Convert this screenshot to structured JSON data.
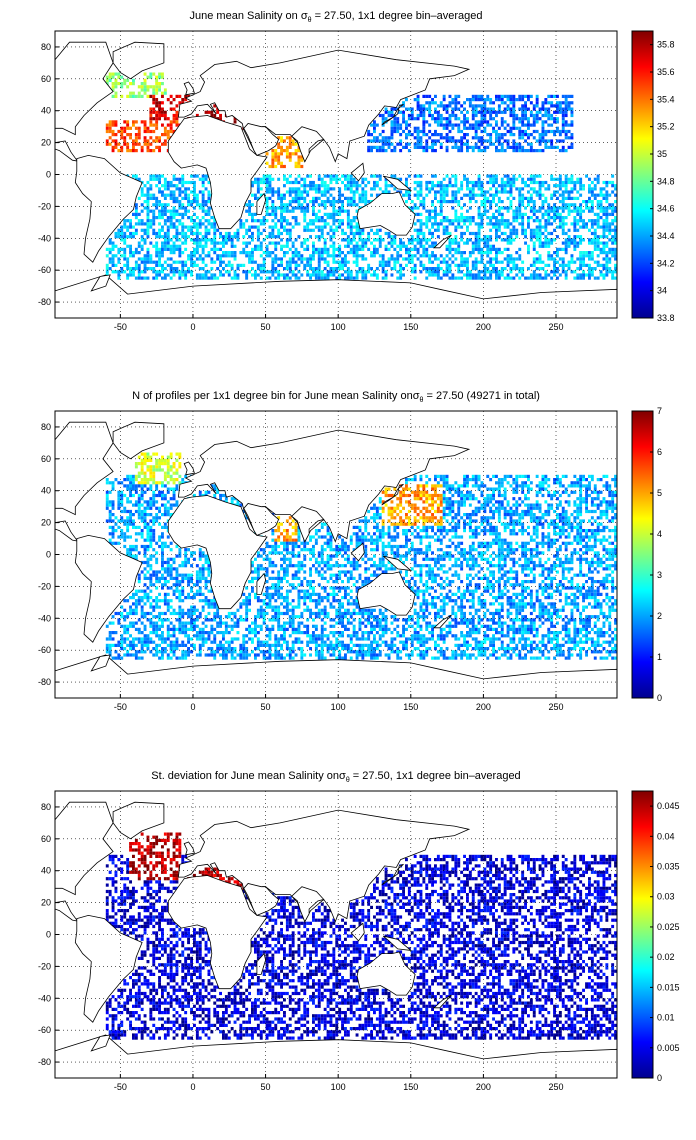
{
  "chart_data": [
    {
      "type": "heatmap",
      "title": {
        "before": "June mean Salinity on ",
        "symbol": "σ",
        "subscript": "θ",
        "after": " = 27.50, 1x1 degree bin–averaged"
      },
      "xlim": [
        -95,
        292
      ],
      "ylim": [
        -90,
        90
      ],
      "xticks": [
        -50,
        0,
        50,
        100,
        150,
        200,
        250
      ],
      "xtick_labels": [
        "-50",
        "0",
        "50",
        "100",
        "150",
        "200",
        "250"
      ],
      "yticks": [
        80,
        60,
        40,
        20,
        0,
        -20,
        -40,
        -60,
        -80
      ],
      "ytick_labels": [
        "80",
        "60",
        "40",
        "20",
        "0",
        "-20",
        "-40",
        "-60",
        "-80"
      ],
      "grid": true,
      "colormap": "jet",
      "colorbar": {
        "min": 33.8,
        "max": 35.9,
        "ticks": [
          35.8,
          35.6,
          35.4,
          35.2,
          35,
          34.8,
          34.6,
          34.4,
          34.2,
          34,
          33.8
        ],
        "tick_labels": [
          "35.8",
          "35.6",
          "35.4",
          "35.2",
          "35",
          "34.8",
          "34.6",
          "34.4",
          "34.2",
          "34",
          "33.8"
        ]
      },
      "regions": [
        {
          "lon": [
            -60,
            -5
          ],
          "lat": [
            15,
            35
          ],
          "value": 35.5
        },
        {
          "lon": [
            -30,
            0
          ],
          "lat": [
            30,
            50
          ],
          "value": 35.7
        },
        {
          "lon": [
            -5,
            35
          ],
          "lat": [
            30,
            44
          ],
          "value": 35.85
        },
        {
          "lon": [
            50,
            75
          ],
          "lat": [
            5,
            25
          ],
          "value": 35.3
        },
        {
          "lon": [
            -60,
            -20
          ],
          "lat": [
            50,
            65
          ],
          "value": 34.9
        },
        {
          "lon": [
            120,
            260
          ],
          "lat": [
            15,
            50
          ],
          "value": 34.3
        },
        {
          "lon": [
            -60,
            290
          ],
          "lat": [
            -65,
            0
          ],
          "value": 34.45
        }
      ]
    },
    {
      "type": "heatmap",
      "title": {
        "before": "N of profiles per 1x1 degree bin for June mean Salinity on",
        "symbol": "σ",
        "subscript": "θ",
        "after": " = 27.50 (49271 in total)"
      },
      "total_profiles": 49271,
      "xlim": [
        -95,
        292
      ],
      "ylim": [
        -90,
        90
      ],
      "xticks": [
        -50,
        0,
        50,
        100,
        150,
        200,
        250
      ],
      "xtick_labels": [
        "-50",
        "0",
        "50",
        "100",
        "150",
        "200",
        "250"
      ],
      "yticks": [
        80,
        60,
        40,
        20,
        0,
        -20,
        -40,
        -60,
        -80
      ],
      "ytick_labels": [
        "80",
        "60",
        "40",
        "20",
        "0",
        "-20",
        "-40",
        "-60",
        "-80"
      ],
      "grid": true,
      "colormap": "jet",
      "colorbar": {
        "min": 0,
        "max": 7,
        "ticks": [
          7,
          6,
          5,
          4,
          3,
          2,
          1,
          0
        ],
        "tick_labels": [
          "7",
          "6",
          "5",
          "4",
          "3",
          "2",
          "1",
          "0"
        ]
      },
      "regions": [
        {
          "lon": [
            130,
            170
          ],
          "lat": [
            20,
            45
          ],
          "value": 5
        },
        {
          "lon": [
            -40,
            -10
          ],
          "lat": [
            45,
            65
          ],
          "value": 4
        },
        {
          "lon": [
            55,
            70
          ],
          "lat": [
            10,
            25
          ],
          "value": 5
        },
        {
          "lon": [
            -60,
            290
          ],
          "lat": [
            -65,
            50
          ],
          "value": 2
        }
      ]
    },
    {
      "type": "heatmap",
      "title": {
        "before": "St. deviation for June mean Salinity on",
        "symbol": "σ",
        "subscript": "θ",
        "after": " = 27.50, 1x1 degree bin–averaged"
      },
      "xlim": [
        -95,
        292
      ],
      "ylim": [
        -90,
        90
      ],
      "xticks": [
        -50,
        0,
        50,
        100,
        150,
        200,
        250
      ],
      "xtick_labels": [
        "-50",
        "0",
        "50",
        "100",
        "150",
        "200",
        "250"
      ],
      "yticks": [
        80,
        60,
        40,
        20,
        0,
        -20,
        -40,
        -60,
        -80
      ],
      "ytick_labels": [
        "80",
        "60",
        "40",
        "20",
        "0",
        "-20",
        "-40",
        "-60",
        "-80"
      ],
      "grid": true,
      "colormap": "jet",
      "colorbar": {
        "min": 0,
        "max": 0.0475,
        "ticks": [
          0.045,
          0.04,
          0.035,
          0.03,
          0.025,
          0.02,
          0.015,
          0.01,
          0.005,
          0
        ],
        "tick_labels": [
          "0.045",
          "0.04",
          "0.035",
          "0.03",
          "0.025",
          "0.02",
          "0.015",
          "0.01",
          "0.005",
          "0"
        ]
      },
      "regions": [
        {
          "lon": [
            -45,
            -10
          ],
          "lat": [
            35,
            65
          ],
          "value": 0.045
        },
        {
          "lon": [
            -5,
            35
          ],
          "lat": [
            30,
            44
          ],
          "value": 0.045
        },
        {
          "lon": [
            -60,
            290
          ],
          "lat": [
            -65,
            50
          ],
          "value": 0.004
        }
      ]
    }
  ]
}
